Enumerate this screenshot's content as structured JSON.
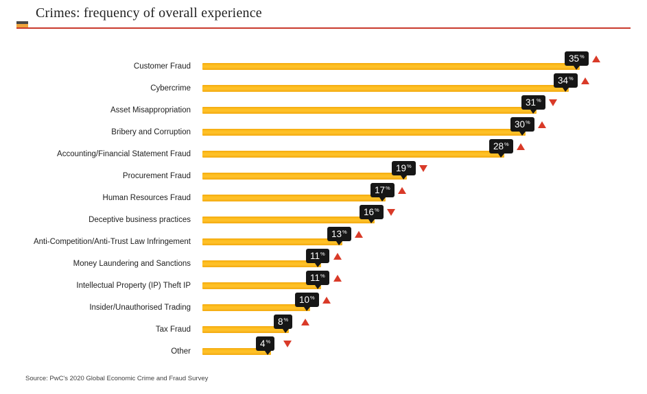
{
  "header": {
    "title": "Crimes: frequency of overall experience"
  },
  "footer": {
    "source": "Source: PwC's 2020 Global Economic Crime and Fraud Survey"
  },
  "colors": {
    "bar_yellow": "#FBB516",
    "badge_background": "#161616",
    "badge_text": "#FFFFFF",
    "trend_triangle_red": "#D93A28",
    "header_rule_red": "#C9392B",
    "flag_top_gray": "#474747",
    "flag_bottom_orange": "#EFA43C"
  },
  "chart_data": {
    "type": "bar",
    "orientation": "horizontal",
    "title": "Crimes: frequency of overall experience",
    "unit": "%",
    "xlabel": "",
    "ylabel": "",
    "value_range": [
      0,
      35
    ],
    "grid": false,
    "legend": false,
    "categories": [
      "Customer Fraud",
      "Cybercrime",
      "Asset Misappropriation",
      "Bribery and Corruption",
      "Accounting/Financial Statement Fraud",
      "Procurement Fraud",
      "Human Resources Fraud",
      "Deceptive business practices",
      "Anti-Competition/Anti-Trust Law Infringement",
      "Money Laundering and Sanctions",
      "Intellectual Property (IP) Theft IP",
      "Insider/Unauthorised Trading",
      "Tax Fraud",
      "Other"
    ],
    "values": [
      35,
      34,
      31,
      30,
      28,
      19,
      17,
      16,
      13,
      11,
      11,
      10,
      8,
      4
    ],
    "labels": [
      "35%",
      "34%",
      "31%",
      "30%",
      "28%",
      "19%",
      "17%",
      "16%",
      "13%",
      "11%",
      "11%",
      "10%",
      "8%",
      "4%"
    ],
    "trends": [
      "up",
      "up",
      "down",
      "up",
      "up",
      "down",
      "up",
      "down",
      "up",
      "up",
      "up",
      "up",
      "up",
      "down"
    ],
    "source": "Source: PwC's 2020 Global Economic Crime and Fraud Survey"
  }
}
